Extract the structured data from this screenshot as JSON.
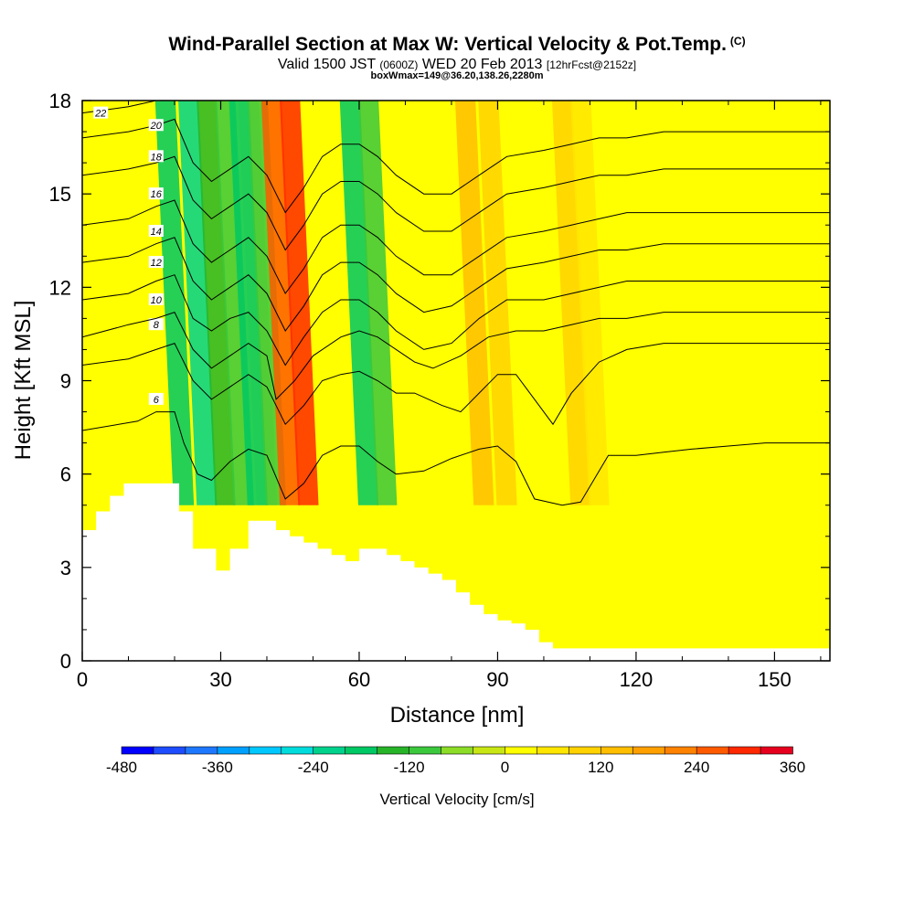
{
  "chart_data": {
    "type": "heatmap",
    "title": "Wind-Parallel Section at Max W: Vertical Velocity & Pot.Temp.",
    "title_mark": "(C)",
    "subtitle_main_a": "Valid 1500 JST",
    "subtitle_utc": "(0600Z)",
    "subtitle_main_b": "WED 20 Feb 2013",
    "subtitle_fcst": "[12hrFcst@2152z]",
    "subsubtitle": "boxWmax=149@36.20,138.26,2280m",
    "xlabel": "Distance [nm]",
    "ylabel": "Height [Kft MSL]",
    "xlim": [
      0,
      162
    ],
    "ylim": [
      0,
      18
    ],
    "x_ticks": [
      0,
      30,
      60,
      90,
      120,
      150
    ],
    "y_ticks": [
      0,
      3,
      6,
      9,
      12,
      15,
      18
    ],
    "colorbar": {
      "label": "Vertical Velocity [cm/s]",
      "ticks": [
        "-480",
        "-360",
        "-240",
        "-120",
        "0",
        "120",
        "240",
        "360"
      ],
      "min": -480,
      "max": 360,
      "step": 40,
      "colors": [
        "#0000ff",
        "#1e4cff",
        "#1e78ff",
        "#00a0ff",
        "#00c8ff",
        "#00dcdc",
        "#00d28c",
        "#00c864",
        "#28b428",
        "#3cc83c",
        "#8cdc28",
        "#c8e614",
        "#ffff00",
        "#ffe600",
        "#ffd200",
        "#ffbe00",
        "#ffa000",
        "#ff8200",
        "#ff5a00",
        "#ff2800",
        "#e6001e",
        "#be0032",
        "#a00064",
        "#8c008c",
        "#6e00a0"
      ]
    },
    "terrain_kft": [
      [
        0,
        4.2
      ],
      [
        3,
        4.8
      ],
      [
        6,
        5.3
      ],
      [
        9,
        5.7
      ],
      [
        18,
        5.7
      ],
      [
        21,
        4.8
      ],
      [
        24,
        3.6
      ],
      [
        29,
        2.9
      ],
      [
        32,
        3.6
      ],
      [
        36,
        4.5
      ],
      [
        39,
        4.5
      ],
      [
        42,
        4.2
      ],
      [
        45,
        4.0
      ],
      [
        48,
        3.8
      ],
      [
        51,
        3.6
      ],
      [
        54,
        3.4
      ],
      [
        57,
        3.2
      ],
      [
        60,
        3.6
      ],
      [
        63,
        3.6
      ],
      [
        66,
        3.4
      ],
      [
        69,
        3.2
      ],
      [
        72,
        3.0
      ],
      [
        75,
        2.8
      ],
      [
        78,
        2.6
      ],
      [
        81,
        2.2
      ],
      [
        84,
        1.8
      ],
      [
        87,
        1.5
      ],
      [
        90,
        1.3
      ],
      [
        93,
        1.2
      ],
      [
        96,
        1.0
      ],
      [
        99,
        0.6
      ],
      [
        102,
        0.4
      ],
      [
        162,
        0.4
      ]
    ],
    "theta_contours": [
      {
        "label": "6",
        "pts": [
          [
            0,
            7.4
          ],
          [
            12,
            7.7
          ],
          [
            16,
            8.0
          ],
          [
            20,
            8.0
          ],
          [
            22,
            7.0
          ],
          [
            25,
            6.0
          ],
          [
            28,
            5.8
          ],
          [
            32,
            6.4
          ],
          [
            36,
            6.8
          ],
          [
            40,
            6.6
          ],
          [
            44,
            5.2
          ],
          [
            48,
            5.7
          ],
          [
            52,
            6.6
          ],
          [
            56,
            6.9
          ],
          [
            60,
            6.9
          ],
          [
            64,
            6.4
          ],
          [
            68,
            6.0
          ],
          [
            74,
            6.1
          ],
          [
            80,
            6.5
          ],
          [
            86,
            6.8
          ],
          [
            90,
            6.9
          ],
          [
            94,
            6.4
          ],
          [
            98,
            5.2
          ],
          [
            104,
            5.0
          ],
          [
            108,
            5.1
          ],
          [
            114,
            6.6
          ],
          [
            120,
            6.6
          ],
          [
            126,
            6.7
          ],
          [
            132,
            6.8
          ],
          [
            140,
            6.9
          ],
          [
            148,
            7.0
          ],
          [
            162,
            7.0
          ]
        ],
        "lab": [
          16,
          8.4
        ]
      },
      {
        "label": "8",
        "pts": [
          [
            0,
            9.5
          ],
          [
            10,
            9.7
          ],
          [
            16,
            10.0
          ],
          [
            20,
            10.2
          ],
          [
            24,
            9.0
          ],
          [
            28,
            8.4
          ],
          [
            32,
            8.8
          ],
          [
            36,
            9.2
          ],
          [
            40,
            8.8
          ],
          [
            44,
            7.6
          ],
          [
            48,
            8.2
          ],
          [
            52,
            9.0
          ],
          [
            56,
            9.2
          ],
          [
            60,
            9.3
          ],
          [
            64,
            9.0
          ],
          [
            68,
            8.6
          ],
          [
            72,
            8.6
          ],
          [
            78,
            8.2
          ],
          [
            82,
            8.0
          ],
          [
            86,
            8.6
          ],
          [
            90,
            9.2
          ],
          [
            94,
            9.2
          ],
          [
            98,
            8.4
          ],
          [
            102,
            7.6
          ],
          [
            106,
            8.6
          ],
          [
            112,
            9.6
          ],
          [
            118,
            10.0
          ],
          [
            126,
            10.2
          ],
          [
            134,
            10.2
          ],
          [
            144,
            10.2
          ],
          [
            162,
            10.2
          ]
        ],
        "lab": [
          16,
          10.8
        ]
      },
      {
        "label": "10",
        "pts": [
          [
            0,
            10.4
          ],
          [
            10,
            10.8
          ],
          [
            16,
            11.0
          ],
          [
            20,
            11.2
          ],
          [
            24,
            10.0
          ],
          [
            28,
            9.4
          ],
          [
            32,
            9.8
          ],
          [
            36,
            10.2
          ],
          [
            40,
            9.8
          ],
          [
            42,
            8.4
          ],
          [
            46,
            9.0
          ],
          [
            50,
            9.8
          ],
          [
            56,
            10.4
          ],
          [
            60,
            10.6
          ],
          [
            64,
            10.4
          ],
          [
            68,
            10.0
          ],
          [
            72,
            9.6
          ],
          [
            76,
            9.4
          ],
          [
            82,
            9.8
          ],
          [
            88,
            10.4
          ],
          [
            94,
            10.6
          ],
          [
            100,
            10.6
          ],
          [
            106,
            10.8
          ],
          [
            112,
            11.0
          ],
          [
            118,
            11.0
          ],
          [
            126,
            11.2
          ],
          [
            134,
            11.2
          ],
          [
            144,
            11.2
          ],
          [
            162,
            11.2
          ]
        ],
        "lab": [
          16,
          11.6
        ]
      },
      {
        "label": "12",
        "pts": [
          [
            0,
            11.6
          ],
          [
            10,
            11.8
          ],
          [
            16,
            12.2
          ],
          [
            20,
            12.4
          ],
          [
            24,
            11.0
          ],
          [
            28,
            10.6
          ],
          [
            32,
            11.0
          ],
          [
            36,
            11.2
          ],
          [
            40,
            10.6
          ],
          [
            44,
            9.5
          ],
          [
            48,
            10.4
          ],
          [
            52,
            11.2
          ],
          [
            56,
            11.6
          ],
          [
            60,
            11.6
          ],
          [
            64,
            11.2
          ],
          [
            68,
            10.6
          ],
          [
            74,
            10.0
          ],
          [
            80,
            10.2
          ],
          [
            86,
            11.0
          ],
          [
            92,
            11.6
          ],
          [
            100,
            11.6
          ],
          [
            106,
            11.8
          ],
          [
            112,
            12.0
          ],
          [
            118,
            12.2
          ],
          [
            126,
            12.2
          ],
          [
            134,
            12.2
          ],
          [
            144,
            12.2
          ],
          [
            162,
            12.2
          ]
        ],
        "lab": [
          16,
          12.8
        ]
      },
      {
        "label": "14",
        "pts": [
          [
            0,
            12.8
          ],
          [
            10,
            13.0
          ],
          [
            16,
            13.4
          ],
          [
            20,
            13.6
          ],
          [
            24,
            12.2
          ],
          [
            28,
            11.6
          ],
          [
            32,
            12.0
          ],
          [
            36,
            12.4
          ],
          [
            40,
            11.8
          ],
          [
            44,
            10.6
          ],
          [
            48,
            11.4
          ],
          [
            52,
            12.4
          ],
          [
            56,
            12.8
          ],
          [
            60,
            12.8
          ],
          [
            64,
            12.4
          ],
          [
            68,
            11.8
          ],
          [
            74,
            11.2
          ],
          [
            80,
            11.4
          ],
          [
            86,
            12.0
          ],
          [
            92,
            12.6
          ],
          [
            100,
            12.8
          ],
          [
            106,
            13.0
          ],
          [
            112,
            13.2
          ],
          [
            118,
            13.2
          ],
          [
            126,
            13.4
          ],
          [
            134,
            13.4
          ],
          [
            144,
            13.4
          ],
          [
            162,
            13.4
          ]
        ],
        "lab": [
          16,
          13.8
        ]
      },
      {
        "label": "16",
        "pts": [
          [
            0,
            14.0
          ],
          [
            10,
            14.2
          ],
          [
            16,
            14.6
          ],
          [
            20,
            14.8
          ],
          [
            24,
            13.4
          ],
          [
            28,
            12.8
          ],
          [
            32,
            13.2
          ],
          [
            36,
            13.6
          ],
          [
            40,
            13.0
          ],
          [
            44,
            11.8
          ],
          [
            48,
            12.6
          ],
          [
            52,
            13.6
          ],
          [
            56,
            14.0
          ],
          [
            60,
            14.0
          ],
          [
            64,
            13.6
          ],
          [
            68,
            13.0
          ],
          [
            74,
            12.4
          ],
          [
            80,
            12.4
          ],
          [
            86,
            13.0
          ],
          [
            92,
            13.6
          ],
          [
            100,
            13.8
          ],
          [
            106,
            14.0
          ],
          [
            112,
            14.2
          ],
          [
            118,
            14.4
          ],
          [
            126,
            14.4
          ],
          [
            134,
            14.4
          ],
          [
            144,
            14.4
          ],
          [
            162,
            14.4
          ]
        ],
        "lab": [
          16,
          15.0
        ]
      },
      {
        "label": "18",
        "pts": [
          [
            0,
            15.6
          ],
          [
            10,
            15.8
          ],
          [
            16,
            16.0
          ],
          [
            20,
            16.2
          ],
          [
            24,
            14.8
          ],
          [
            28,
            14.2
          ],
          [
            32,
            14.6
          ],
          [
            36,
            15.0
          ],
          [
            40,
            14.4
          ],
          [
            44,
            13.2
          ],
          [
            48,
            14.0
          ],
          [
            52,
            15.0
          ],
          [
            56,
            15.4
          ],
          [
            60,
            15.4
          ],
          [
            64,
            15.0
          ],
          [
            68,
            14.4
          ],
          [
            74,
            13.8
          ],
          [
            80,
            13.8
          ],
          [
            86,
            14.4
          ],
          [
            92,
            15.0
          ],
          [
            100,
            15.2
          ],
          [
            106,
            15.4
          ],
          [
            112,
            15.6
          ],
          [
            118,
            15.6
          ],
          [
            126,
            15.8
          ],
          [
            134,
            15.8
          ],
          [
            144,
            15.8
          ],
          [
            162,
            15.8
          ]
        ],
        "lab": [
          16,
          16.2
        ]
      },
      {
        "label": "20",
        "pts": [
          [
            0,
            16.8
          ],
          [
            10,
            17.0
          ],
          [
            16,
            17.2
          ],
          [
            20,
            17.4
          ],
          [
            24,
            16.0
          ],
          [
            28,
            15.4
          ],
          [
            32,
            15.8
          ],
          [
            36,
            16.2
          ],
          [
            40,
            15.6
          ],
          [
            44,
            14.4
          ],
          [
            48,
            15.2
          ],
          [
            52,
            16.2
          ],
          [
            56,
            16.6
          ],
          [
            60,
            16.6
          ],
          [
            64,
            16.2
          ],
          [
            68,
            15.6
          ],
          [
            74,
            15.0
          ],
          [
            80,
            15.0
          ],
          [
            86,
            15.6
          ],
          [
            92,
            16.2
          ],
          [
            100,
            16.4
          ],
          [
            106,
            16.6
          ],
          [
            112,
            16.8
          ],
          [
            118,
            16.8
          ],
          [
            126,
            17.0
          ],
          [
            134,
            17.0
          ],
          [
            144,
            17.0
          ],
          [
            162,
            17.0
          ]
        ],
        "lab": [
          16,
          17.2
        ]
      },
      {
        "label": "22",
        "pts": [
          [
            0,
            17.6
          ],
          [
            10,
            17.8
          ],
          [
            16,
            18.0
          ]
        ],
        "lab": [
          4,
          17.6
        ]
      }
    ],
    "w_bands": [
      {
        "cat": "downdraft",
        "xc": [
          22,
          27,
          31,
          35,
          40
        ],
        "w": [
          -200,
          -240,
          -160,
          -100,
          -40
        ]
      },
      {
        "cat": "downdraft",
        "xc": [
          38,
          42
        ],
        "w": [
          -180,
          -120
        ]
      },
      {
        "cat": "downdraft",
        "xc": [
          62,
          66
        ],
        "w": [
          -200,
          -120
        ]
      },
      {
        "cat": "updraft",
        "xc": [
          45,
          49
        ],
        "w": [
          240,
          280
        ]
      },
      {
        "cat": "updraft",
        "xc": [
          87,
          92
        ],
        "w": [
          140,
          100
        ]
      },
      {
        "cat": "updraft",
        "xc": [
          108,
          112
        ],
        "w": [
          80,
          60
        ]
      }
    ]
  }
}
